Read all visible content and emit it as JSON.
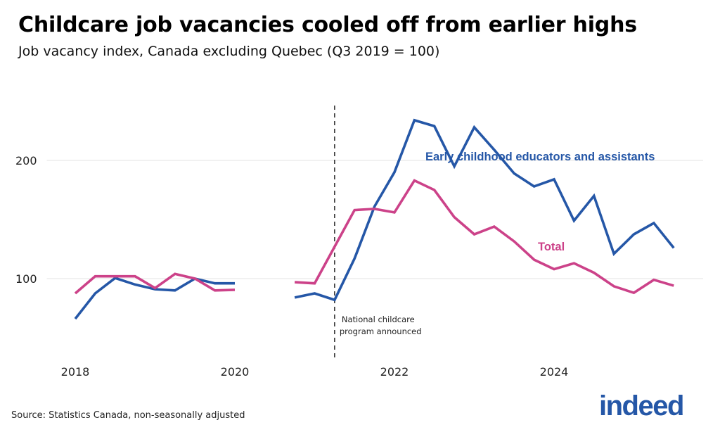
{
  "chart_data": {
    "type": "line",
    "title": "Childcare job vacancies cooled off from earlier highs",
    "subtitle": "Job vacancy index, Canada excluding Quebec (Q3 2019 = 100)",
    "xlabel": "",
    "ylabel": "",
    "x": [
      "2018 Q1",
      "2018 Q2",
      "2018 Q3",
      "2018 Q4",
      "2019 Q1",
      "2019 Q2",
      "2019 Q3",
      "2019 Q4",
      "2020 Q1",
      "2020 Q2",
      "2020 Q3",
      "2020 Q4",
      "2021 Q1",
      "2021 Q2",
      "2021 Q3",
      "2021 Q4",
      "2022 Q1",
      "2022 Q2",
      "2022 Q3",
      "2022 Q4",
      "2023 Q1",
      "2023 Q2",
      "2023 Q3",
      "2023 Q4",
      "2024 Q1",
      "2024 Q2",
      "2024 Q3",
      "2024 Q4",
      "2025 Q1",
      "2025 Q2",
      "2025 Q3"
    ],
    "series": [
      {
        "name": "Early childhood educators and assistants",
        "color": "#2557a7",
        "values": [
          66,
          87.5,
          100.5,
          95,
          91,
          90,
          100,
          96,
          96,
          null,
          null,
          84,
          87.5,
          82,
          117,
          161,
          190,
          234,
          229,
          195,
          228,
          209,
          189,
          178,
          184,
          149,
          170,
          121,
          137.5,
          147,
          126
        ]
      },
      {
        "name": "Total",
        "color": "#cc4289",
        "values": [
          87.5,
          102,
          102,
          102,
          92,
          104,
          100,
          90,
          90.5,
          null,
          null,
          97,
          96,
          127,
          158,
          159,
          156,
          183,
          175,
          152,
          137.5,
          144,
          131.5,
          116,
          108,
          113,
          105,
          93.5,
          88,
          99,
          94
        ]
      }
    ],
    "xticks": [
      "2018",
      "2020",
      "2022",
      "2024"
    ],
    "yticks": [
      "100",
      "200"
    ],
    "xlim": [
      2017.6,
      2025.9
    ],
    "ylim": [
      35,
      255
    ],
    "grid": "horizontal",
    "legend": "direct labels",
    "annotation": {
      "x": "2021 Q2",
      "lines": [
        "National childcare",
        "program announced"
      ]
    },
    "source": "Source: Statistics Canada, non-seasonally adjusted",
    "logo": "indeed"
  }
}
